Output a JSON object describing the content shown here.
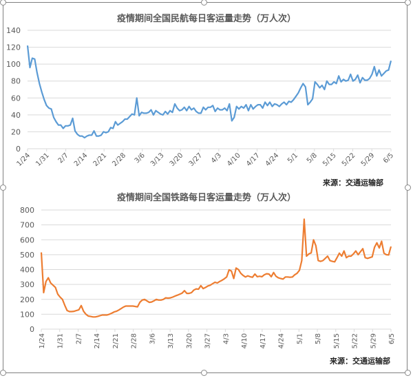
{
  "charts": {
    "aviation": {
      "title": "疫情期间全国民航每日客运量走势（万人次）",
      "source": "来源：交通运输部",
      "line_color": "#5B9BD5"
    },
    "railway": {
      "title": "疫情期间全国铁路每日客运量走势（万人次）",
      "source": "来源：交通运输部",
      "line_color": "#ED7D31"
    }
  },
  "chart_data": [
    {
      "type": "line",
      "title": "疫情期间全国民航每日客运量走势（万人次）",
      "xlabel": "",
      "ylabel": "万人次",
      "ylim": [
        0,
        140
      ],
      "yticks": [
        0,
        20,
        40,
        60,
        80,
        100,
        120,
        140
      ],
      "grid": true,
      "legend": "none",
      "annotation": "来源：交通运输部",
      "color": "#5B9BD5",
      "xtick_labels": [
        "1/24",
        "1/31",
        "2/7",
        "2/14",
        "2/21",
        "2/28",
        "3/6",
        "3/13",
        "3/20",
        "3/27",
        "4/3",
        "4/10",
        "4/17",
        "4/24",
        "5/1",
        "5/8",
        "5/15",
        "5/22",
        "5/29",
        "6/5"
      ],
      "x_start": "1/24",
      "x_end": "6/5",
      "values": [
        122,
        96,
        107,
        106,
        90,
        77,
        67,
        58,
        51,
        48,
        47,
        37,
        32,
        28,
        28,
        24,
        27,
        27,
        28,
        36,
        21,
        17,
        15,
        15,
        13,
        15,
        16,
        16,
        21,
        15,
        15,
        16,
        20,
        19,
        20,
        25,
        24,
        32,
        28,
        30,
        32,
        35,
        35,
        38,
        41,
        40,
        60,
        39,
        43,
        42,
        42,
        43,
        46,
        40,
        45,
        43,
        41,
        40,
        44,
        41,
        45,
        43,
        53,
        48,
        45,
        46,
        49,
        45,
        50,
        46,
        48,
        44,
        42,
        42,
        49,
        46,
        49,
        49,
        51,
        44,
        48,
        46,
        46,
        48,
        45,
        53,
        33,
        37,
        50,
        47,
        50,
        48,
        52,
        45,
        52,
        47,
        50,
        52,
        52,
        48,
        55,
        51,
        55,
        50,
        53,
        52,
        50,
        53,
        55,
        52,
        56,
        55,
        58,
        62,
        66,
        72,
        77,
        73,
        52,
        55,
        59,
        79,
        76,
        72,
        75,
        70,
        80,
        76,
        76,
        79,
        77,
        86,
        79,
        82,
        80,
        81,
        88,
        80,
        82,
        87,
        78,
        84,
        81,
        81,
        83,
        88,
        97,
        86,
        93,
        86,
        89,
        92,
        93,
        104
      ]
    },
    {
      "type": "line",
      "title": "疫情期间全国铁路每日客运量走势（万人次）",
      "xlabel": "",
      "ylabel": "万人次",
      "ylim": [
        0,
        800
      ],
      "yticks": [
        0,
        100,
        200,
        300,
        400,
        500,
        600,
        700,
        800
      ],
      "grid": true,
      "legend": "none",
      "annotation": "来源：交通运输部",
      "color": "#ED7D31",
      "xtick_labels": [
        "1/24",
        "1/31",
        "2/7",
        "2/14",
        "2/21",
        "2/28",
        "3/6",
        "3/13",
        "3/20",
        "3/27",
        "4/3",
        "4/10",
        "4/17",
        "4/24",
        "5/1",
        "5/8",
        "5/15",
        "5/22",
        "5/29",
        "6/5"
      ],
      "x_start": "1/24",
      "x_end": "6/5",
      "values": [
        515,
        245,
        320,
        345,
        310,
        295,
        280,
        235,
        215,
        200,
        160,
        125,
        118,
        118,
        120,
        125,
        130,
        158,
        120,
        100,
        88,
        85,
        82,
        82,
        85,
        90,
        95,
        95,
        95,
        100,
        107,
        115,
        120,
        128,
        138,
        148,
        155,
        155,
        155,
        155,
        152,
        150,
        180,
        195,
        200,
        190,
        180,
        182,
        190,
        200,
        195,
        195,
        200,
        210,
        208,
        210,
        215,
        222,
        228,
        235,
        242,
        258,
        240,
        240,
        245,
        262,
        270,
        268,
        292,
        272,
        280,
        290,
        295,
        305,
        315,
        310,
        320,
        328,
        338,
        350,
        398,
        390,
        340,
        410,
        400,
        375,
        360,
        350,
        358,
        352,
        348,
        370,
        352,
        355,
        352,
        365,
        372,
        370,
        352,
        380,
        355,
        345,
        340,
        336,
        350,
        350,
        348,
        350,
        365,
        375,
        395,
        460,
        738,
        490,
        505,
        512,
        600,
        560,
        460,
        455,
        460,
        475,
        490,
        460,
        455,
        452,
        480,
        510,
        490,
        525,
        480,
        490,
        490,
        505,
        525,
        500,
        520,
        540,
        480,
        475,
        480,
        485,
        550,
        580,
        545,
        590,
        510,
        500,
        498,
        555
      ]
    }
  ]
}
